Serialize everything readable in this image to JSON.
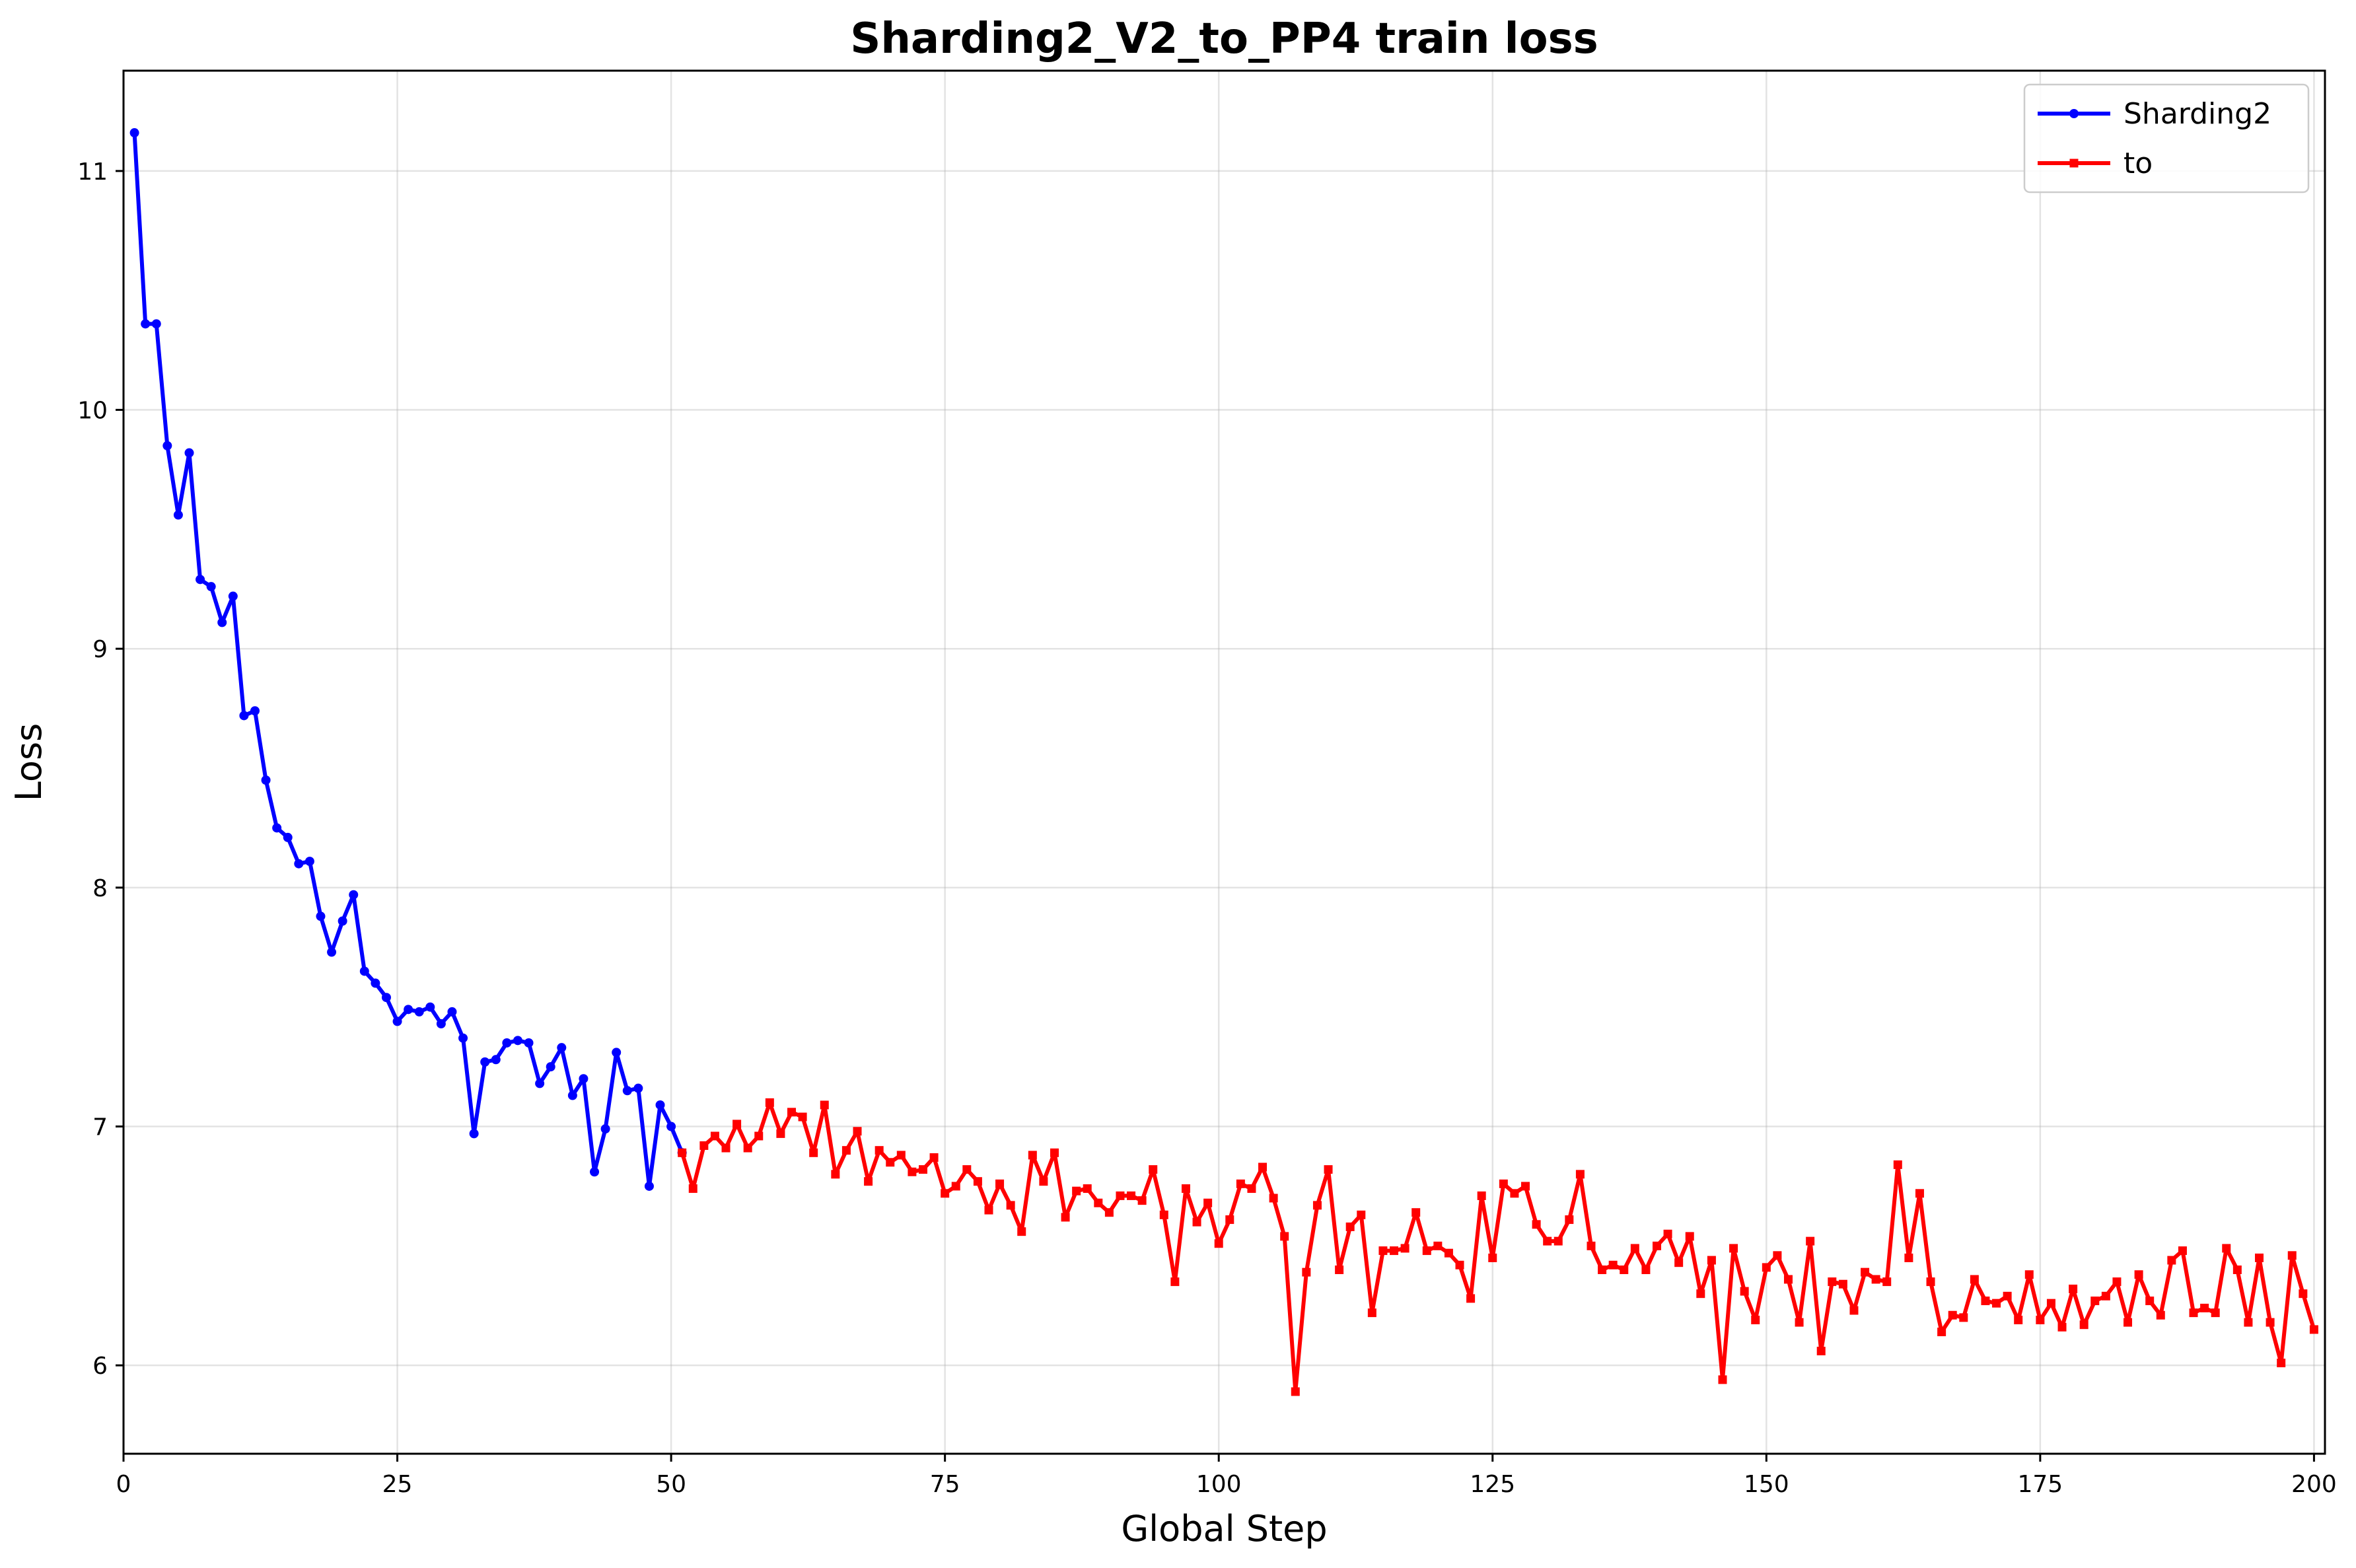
{
  "chart_data": {
    "type": "line",
    "title": "Sharding2_V2_to_PP4 train loss",
    "xlabel": "Global Step",
    "ylabel": "Loss",
    "xlim": [
      0,
      201
    ],
    "ylim": [
      5.63,
      11.42
    ],
    "x_ticks": [
      0,
      25,
      50,
      75,
      100,
      125,
      150,
      175,
      200
    ],
    "y_ticks": [
      6,
      7,
      8,
      9,
      10,
      11
    ],
    "grid": true,
    "legend_position": "top-right",
    "series": [
      {
        "name": "Sharding2",
        "color": "#0000ff",
        "marker": "circle",
        "x": [
          1,
          2,
          3,
          4,
          5,
          6,
          7,
          8,
          9,
          10,
          11,
          12,
          13,
          14,
          15,
          16,
          17,
          18,
          19,
          20,
          21,
          22,
          23,
          24,
          25,
          26,
          27,
          28,
          29,
          30,
          31,
          32,
          33,
          34,
          35,
          36,
          37,
          38,
          39,
          40,
          41,
          42,
          43,
          44,
          45,
          46,
          47,
          48,
          49,
          50,
          51
        ],
        "y": [
          11.16,
          10.36,
          10.36,
          9.85,
          9.56,
          9.82,
          9.29,
          9.26,
          9.11,
          9.22,
          8.72,
          8.74,
          8.45,
          8.25,
          8.21,
          8.1,
          8.11,
          7.88,
          7.73,
          7.86,
          7.97,
          7.65,
          7.6,
          7.54,
          7.44,
          7.49,
          7.48,
          7.5,
          7.43,
          7.48,
          7.37,
          6.97,
          7.27,
          7.28,
          7.35,
          7.36,
          7.35,
          7.18,
          7.25,
          7.33,
          7.13,
          7.2,
          6.81,
          6.99,
          7.31,
          7.15,
          7.16,
          6.75,
          7.09,
          7.0,
          6.89
        ]
      },
      {
        "name": "to",
        "color": "#ff0000",
        "marker": "square",
        "x": [
          51,
          52,
          53,
          54,
          55,
          56,
          57,
          58,
          59,
          60,
          61,
          62,
          63,
          64,
          65,
          66,
          67,
          68,
          69,
          70,
          71,
          72,
          73,
          74,
          75,
          76,
          77,
          78,
          79,
          80,
          81,
          82,
          83,
          84,
          85,
          86,
          87,
          88,
          89,
          90,
          91,
          92,
          93,
          94,
          95,
          96,
          97,
          98,
          99,
          100,
          101,
          102,
          103,
          104,
          105,
          106,
          107,
          108,
          109,
          110,
          111,
          112,
          113,
          114,
          115,
          116,
          117,
          118,
          119,
          120,
          121,
          122,
          123,
          124,
          125,
          126,
          127,
          128,
          129,
          130,
          131,
          132,
          133,
          134,
          135,
          136,
          137,
          138,
          139,
          140,
          141,
          142,
          143,
          144,
          145,
          146,
          147,
          148,
          149,
          150,
          151,
          152,
          153,
          154,
          155,
          156,
          157,
          158,
          159,
          160,
          161,
          162,
          163,
          164,
          165,
          166,
          167,
          168,
          169,
          170,
          171,
          172,
          173,
          174,
          175,
          176,
          177,
          178,
          179,
          180,
          181,
          182,
          183,
          184,
          185,
          186,
          187,
          188,
          189,
          190,
          191,
          192,
          193,
          194,
          195,
          196,
          197,
          198,
          199,
          200
        ],
        "y": [
          6.89,
          6.74,
          6.92,
          6.96,
          6.91,
          7.01,
          6.91,
          6.96,
          7.1,
          6.97,
          7.06,
          7.04,
          6.89,
          7.09,
          6.8,
          6.9,
          6.98,
          6.77,
          6.9,
          6.85,
          6.88,
          6.81,
          6.82,
          6.87,
          6.72,
          6.75,
          6.82,
          6.77,
          6.65,
          6.76,
          6.67,
          6.56,
          6.88,
          6.77,
          6.89,
          6.62,
          6.73,
          6.74,
          6.68,
          6.64,
          6.71,
          6.71,
          6.69,
          6.82,
          6.63,
          6.35,
          6.74,
          6.6,
          6.68,
          6.51,
          6.61,
          6.76,
          6.74,
          6.83,
          6.7,
          6.54,
          5.89,
          6.39,
          6.67,
          6.82,
          6.4,
          6.58,
          6.63,
          6.22,
          6.48,
          6.48,
          6.49,
          6.64,
          6.48,
          6.5,
          6.47,
          6.42,
          6.28,
          6.71,
          6.45,
          6.76,
          6.72,
          6.75,
          6.59,
          6.52,
          6.52,
          6.61,
          6.8,
          6.5,
          6.4,
          6.42,
          6.4,
          6.49,
          6.4,
          6.5,
          6.55,
          6.43,
          6.54,
          6.3,
          6.44,
          5.94,
          6.49,
          6.31,
          6.19,
          6.41,
          6.46,
          6.36,
          6.18,
          6.52,
          6.06,
          6.35,
          6.34,
          6.23,
          6.39,
          6.36,
          6.35,
          6.84,
          6.45,
          6.72,
          6.35,
          6.14,
          6.21,
          6.2,
          6.36,
          6.27,
          6.26,
          6.29,
          6.19,
          6.38,
          6.19,
          6.26,
          6.16,
          6.32,
          6.17,
          6.27,
          6.29,
          6.35,
          6.18,
          6.38,
          6.27,
          6.21,
          6.44,
          6.48,
          6.22,
          6.24,
          6.22,
          6.49,
          6.4,
          6.18,
          6.45,
          6.18,
          6.01,
          6.46,
          6.3,
          6.15
        ]
      }
    ]
  }
}
